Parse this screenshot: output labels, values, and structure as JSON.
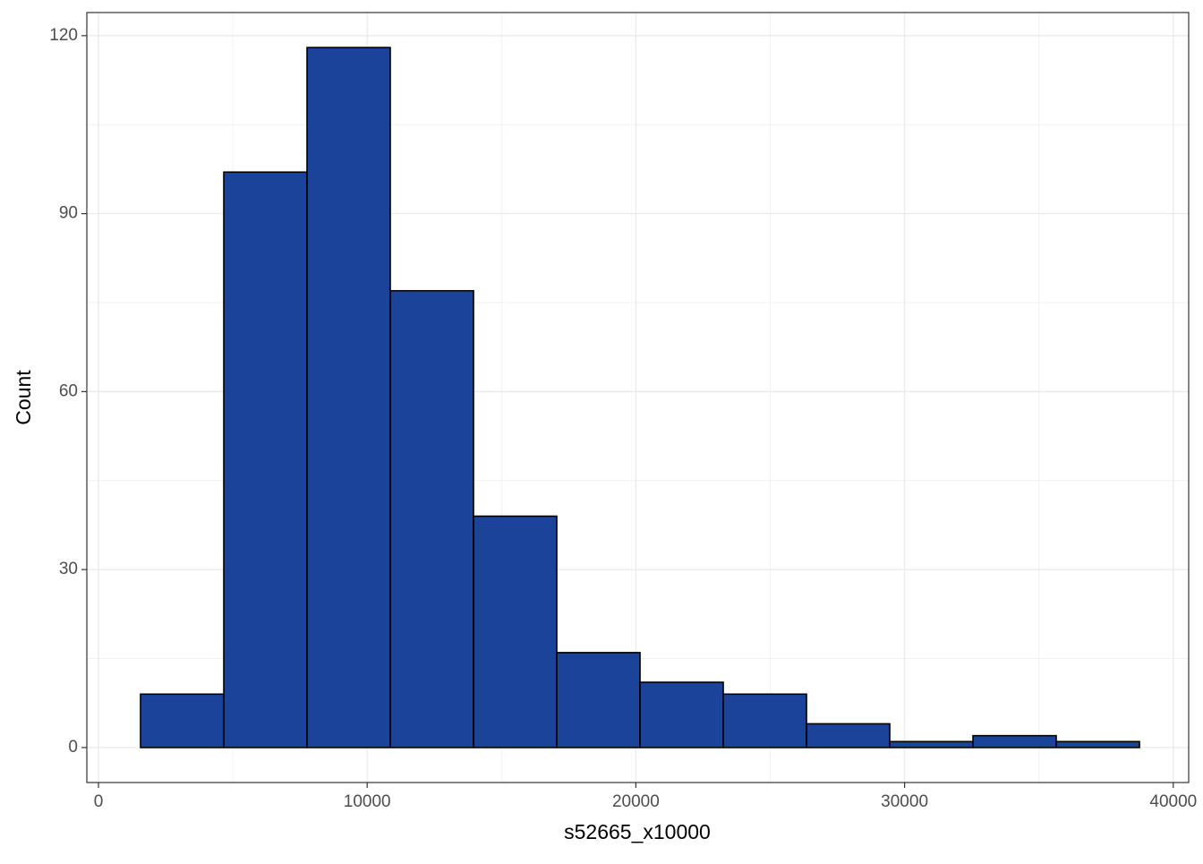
{
  "chart_data": {
    "type": "histogram",
    "x_label": "s52665_x10000",
    "y_label": "Count",
    "bins": [
      1566,
      4664,
      7762,
      10860,
      13958,
      17056,
      20154,
      23252,
      26350,
      29448,
      32546,
      35644,
      38742
    ],
    "values": [
      9,
      97,
      118,
      77,
      39,
      16,
      11,
      9,
      4,
      1,
      2,
      1
    ],
    "color": "#1a4399",
    "edge_color": "#000000",
    "xlim": [
      -433,
      40573
    ],
    "ylim": [
      -5.9,
      123.9
    ],
    "xticks": [
      0,
      10000,
      20000,
      30000,
      40000
    ],
    "yticks": [
      0,
      30,
      60,
      90,
      120
    ],
    "grid": true
  }
}
